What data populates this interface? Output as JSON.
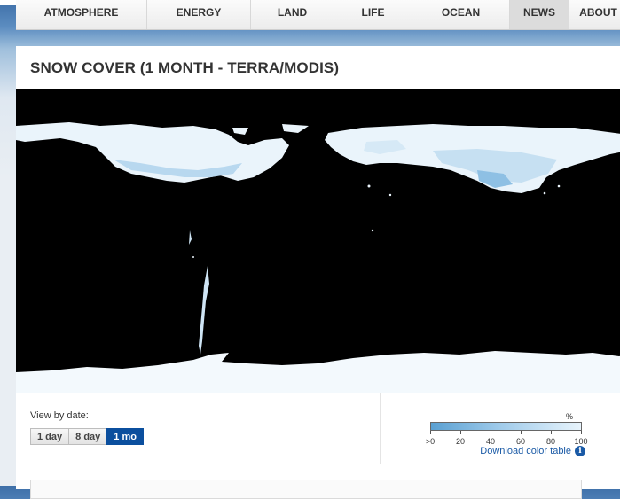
{
  "nav": {
    "items": [
      {
        "label": "ATMOSPHERE",
        "active": false
      },
      {
        "label": "ENERGY",
        "active": false
      },
      {
        "label": "LAND",
        "active": false
      },
      {
        "label": "LIFE",
        "active": false
      },
      {
        "label": "OCEAN",
        "active": false
      },
      {
        "label": "NEWS",
        "active": true
      },
      {
        "label": "ABOUT",
        "active": false
      }
    ]
  },
  "panel": {
    "title": "SNOW COVER (1 MONTH - TERRA/MODIS)"
  },
  "controls": {
    "view_label": "View by date:",
    "buttons": [
      {
        "label": "1 day",
        "active": false
      },
      {
        "label": "8 day",
        "active": false
      },
      {
        "label": "1 mo",
        "active": true
      }
    ]
  },
  "legend": {
    "unit": "%",
    "ticks": [
      ">0",
      "20",
      "40",
      "60",
      "80",
      "100"
    ],
    "download_label": "Download color table",
    "info_icon": "info-icon"
  },
  "colors": {
    "accent": "#0b4f9e",
    "link": "#1a5aa6",
    "map_background": "#000000",
    "snow": "#eaf4fb"
  }
}
